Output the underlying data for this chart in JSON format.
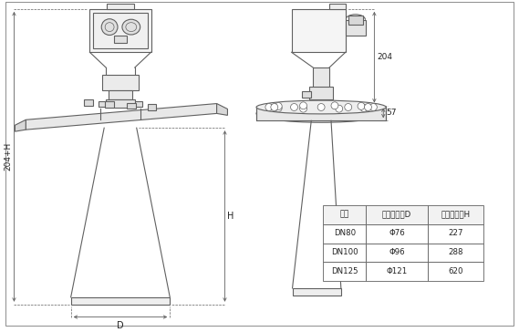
{
  "bg_color": "#ffffff",
  "line_color": "#606060",
  "fill_light": "#e8e8e8",
  "fill_mid": "#d0d0d0",
  "table_headers": [
    "法兰",
    "喇叭口直径D",
    "喇叭口高度H"
  ],
  "table_rows": [
    [
      "DN80",
      "Φ76",
      "227"
    ],
    [
      "DN100",
      "Φ96",
      "288"
    ],
    [
      "DN125",
      "Φ121",
      "620"
    ]
  ],
  "dim_204": "204",
  "dim_57": "57",
  "dim_H": "H",
  "dim_204H": "204+H",
  "dim_D": "D"
}
